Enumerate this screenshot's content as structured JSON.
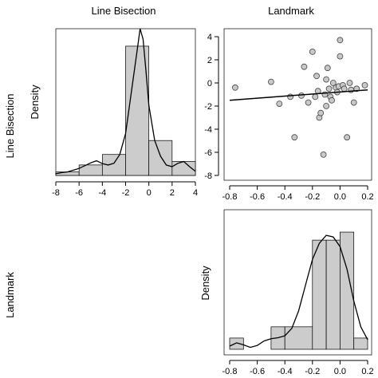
{
  "column_labels": [
    "Line Bisection",
    "Landmark"
  ],
  "row_labels": [
    "Line Bisection",
    "Landmark"
  ],
  "colors": {
    "bar_fill": "#cccccc",
    "point_fill": "#c8c8c8",
    "stroke": "#000000"
  },
  "chart_data": [
    {
      "type": "bar",
      "ylabel": "Density",
      "bins": [
        [
          -8,
          -6
        ],
        [
          -6,
          -4
        ],
        [
          -4,
          -2
        ],
        [
          -2,
          0
        ],
        [
          0,
          2
        ],
        [
          2,
          4
        ]
      ],
      "values": [
        0.01,
        0.03,
        0.06,
        0.37,
        0.1,
        0.04
      ],
      "xlim": [
        -8,
        4
      ],
      "ylim": [
        0,
        0.42
      ],
      "xticks": [
        "-8",
        "-6",
        "-4",
        "-2",
        "0",
        "2",
        "4"
      ],
      "density_curve": {
        "x": [
          -8,
          -7.5,
          -7,
          -6.5,
          -6,
          -5.5,
          -5,
          -4.5,
          -4,
          -3.5,
          -3,
          -2.5,
          -2,
          -1.5,
          -1,
          -0.75,
          -0.5,
          -0.25,
          0,
          0.5,
          1,
          1.5,
          2,
          2.5,
          3,
          3.5,
          4
        ],
        "y": [
          0.005,
          0.008,
          0.01,
          0.015,
          0.02,
          0.028,
          0.036,
          0.042,
          0.034,
          0.03,
          0.035,
          0.06,
          0.12,
          0.24,
          0.36,
          0.42,
          0.39,
          0.3,
          0.2,
          0.1,
          0.055,
          0.03,
          0.025,
          0.035,
          0.04,
          0.025,
          0.012
        ]
      }
    },
    {
      "type": "scatter",
      "x": [
        -0.76,
        -0.5,
        -0.44,
        -0.36,
        -0.33,
        -0.28,
        -0.26,
        -0.23,
        -0.2,
        -0.18,
        -0.17,
        -0.16,
        -0.15,
        -0.14,
        -0.12,
        -0.11,
        -0.1,
        -0.1,
        -0.09,
        -0.08,
        -0.07,
        -0.06,
        -0.05,
        -0.03,
        -0.02,
        -0.01,
        0.0,
        0.0,
        0.02,
        0.03,
        0.05,
        0.07,
        0.08,
        0.1,
        0.12,
        0.18
      ],
      "y": [
        -0.4,
        0.1,
        -1.8,
        -1.2,
        -4.7,
        -1.1,
        1.4,
        -1.7,
        2.7,
        -1.2,
        0.6,
        -0.7,
        -3.0,
        -2.6,
        -6.2,
        -1.0,
        -2.0,
        0.3,
        1.3,
        -0.5,
        -1.2,
        -1.5,
        0.0,
        -0.4,
        -0.8,
        -0.3,
        3.7,
        2.3,
        -0.2,
        -0.5,
        -4.7,
        0.0,
        -0.6,
        -1.7,
        -0.5,
        -0.2
      ],
      "regression": {
        "x": [
          -0.8,
          0.2
        ],
        "y": [
          -1.5,
          -0.6
        ]
      },
      "xlim": [
        -0.8,
        0.2
      ],
      "ylim": [
        -8,
        4
      ],
      "xticks": [
        "-0.8",
        "-0.6",
        "-0.4",
        "-0.2",
        "0.0",
        "0.2"
      ],
      "yticks": [
        "-8",
        "-6",
        "-4",
        "-2",
        "0",
        "2",
        "4"
      ]
    },
    {
      "type": "bar",
      "ylabel": "Density",
      "bins": [
        [
          -0.8,
          -0.7
        ],
        [
          -0.7,
          -0.5
        ],
        [
          -0.5,
          -0.4
        ],
        [
          -0.4,
          -0.2
        ],
        [
          -0.2,
          -0.1
        ],
        [
          -0.1,
          0.0
        ],
        [
          0.0,
          0.1
        ],
        [
          0.1,
          0.2
        ]
      ],
      "values": [
        0.35,
        0.0,
        0.7,
        0.7,
        3.4,
        3.4,
        3.65,
        0.35
      ],
      "xlim": [
        -0.8,
        0.2
      ],
      "ylim": [
        0,
        3.85
      ],
      "xticks": [
        "-0.8",
        "-0.6",
        "-0.4",
        "-0.2",
        "0.0",
        "0.2"
      ],
      "density_curve": {
        "x": [
          -0.8,
          -0.75,
          -0.7,
          -0.65,
          -0.6,
          -0.55,
          -0.5,
          -0.45,
          -0.4,
          -0.35,
          -0.3,
          -0.25,
          -0.2,
          -0.15,
          -0.1,
          -0.05,
          0.0,
          0.05,
          0.1,
          0.15,
          0.2
        ],
        "y": [
          0.1,
          0.2,
          0.14,
          0.06,
          0.12,
          0.26,
          0.33,
          0.36,
          0.42,
          0.65,
          1.2,
          2.0,
          2.8,
          3.3,
          3.55,
          3.5,
          3.2,
          2.5,
          1.5,
          0.7,
          0.3
        ]
      }
    }
  ]
}
